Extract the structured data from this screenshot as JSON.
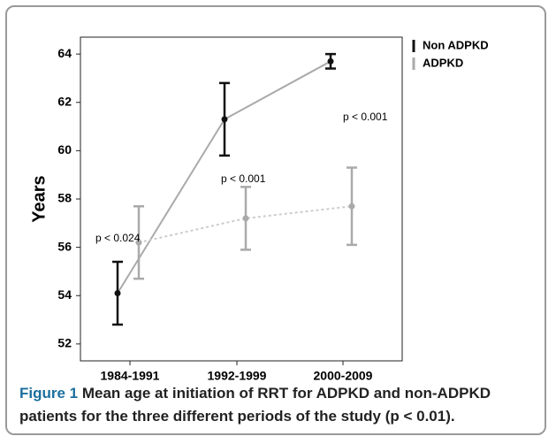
{
  "chart_data": {
    "type": "errorbar",
    "y_label": "Years",
    "categories": [
      "1984-1991",
      "1992-1999",
      "2000-2009"
    ],
    "series": [
      {
        "name": "Non ADPKD",
        "color": "#111111",
        "line_color": "#aaaaaa",
        "values": [
          54.1,
          61.3,
          63.7
        ],
        "errors": [
          1.3,
          1.5,
          0.3
        ]
      },
      {
        "name": "ADPKD",
        "color": "#aaaaaa",
        "line_color": "#cccccc",
        "values": [
          56.2,
          57.2,
          57.7
        ],
        "errors": [
          1.5,
          1.3,
          1.6
        ]
      }
    ],
    "annotations": [
      "p < 0.024",
      "p < 0.001",
      "p < 0.001"
    ],
    "ylim": [
      51.3,
      64.7
    ],
    "yticks": [
      52,
      54,
      56,
      58,
      60,
      62,
      64
    ]
  },
  "caption_label": "Figure 1",
  "caption": "Mean age at initiation of RRT for ADPKD and non-ADPKD patients for the three different periods of the study (p < 0.01)."
}
